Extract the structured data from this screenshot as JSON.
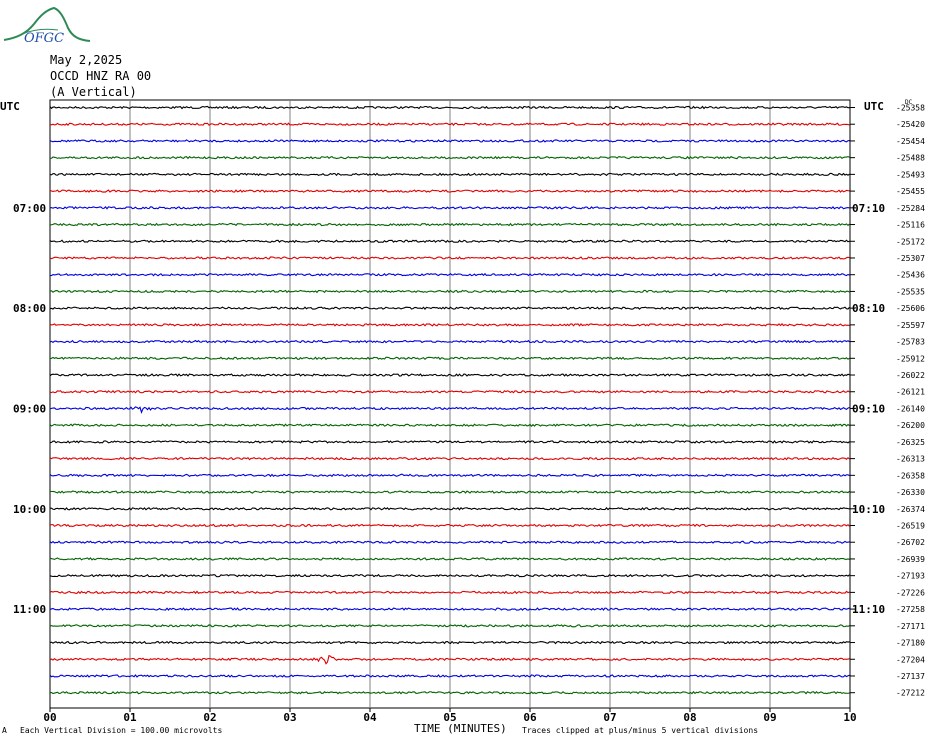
{
  "logo_text": "OFGC",
  "header": {
    "date": "May 2,2025",
    "station": "OCCD HNZ RA 00",
    "component": "(A Vertical)"
  },
  "utc_left_label": "UTC",
  "utc_right_label": "UTC",
  "top_right_marker": "DC",
  "colors": {
    "trace_cycle": [
      "#000000",
      "#e00000",
      "#0000e0",
      "#006400"
    ],
    "grid": "#808080"
  },
  "chart_data": {
    "type": "line",
    "xlabel": "TIME (MINUTES)",
    "x_ticks": [
      "00",
      "01",
      "02",
      "03",
      "04",
      "05",
      "06",
      "07",
      "08",
      "09",
      "10"
    ],
    "xlim": [
      0,
      10
    ],
    "left_hour_labels": [
      {
        "row": 6,
        "label": "07:00"
      },
      {
        "row": 12,
        "label": "08:00"
      },
      {
        "row": 18,
        "label": "09:00"
      },
      {
        "row": 24,
        "label": "10:00"
      },
      {
        "row": 30,
        "label": "11:00"
      }
    ],
    "right_hour_labels": [
      {
        "row": 6,
        "label": "07:10"
      },
      {
        "row": 12,
        "label": "08:10"
      },
      {
        "row": 18,
        "label": "09:10"
      },
      {
        "row": 24,
        "label": "10:10"
      },
      {
        "row": 30,
        "label": "11:10"
      }
    ],
    "trace_offsets": [
      "-25358",
      "-25420",
      "-25454",
      "-25488",
      "-25493",
      "-25455",
      "-25284",
      "-25116",
      "-25172",
      "-25307",
      "-25436",
      "-25535",
      "-25606",
      "-25597",
      "-25783",
      "-25912",
      "-26022",
      "-26121",
      "-26140",
      "-26200",
      "-26325",
      "-26313",
      "-26358",
      "-26330",
      "-26374",
      "-26519",
      "-26702",
      "-26939",
      "-27193",
      "-27226",
      "-27258",
      "-27171",
      "-27180",
      "-27204",
      "-27137",
      "-27212"
    ],
    "events": [
      {
        "row": 18,
        "minute": 1.15,
        "amplitude": 1.6
      },
      {
        "row": 33,
        "minute": 3.45,
        "amplitude": 2.2
      }
    ],
    "grid": true
  },
  "footer": {
    "division_note": "Each Vertical Division =  100.00 microvolts",
    "clip_note": "Traces clipped at plus/minus 5 vertical divisions",
    "corner_mark": "A"
  }
}
